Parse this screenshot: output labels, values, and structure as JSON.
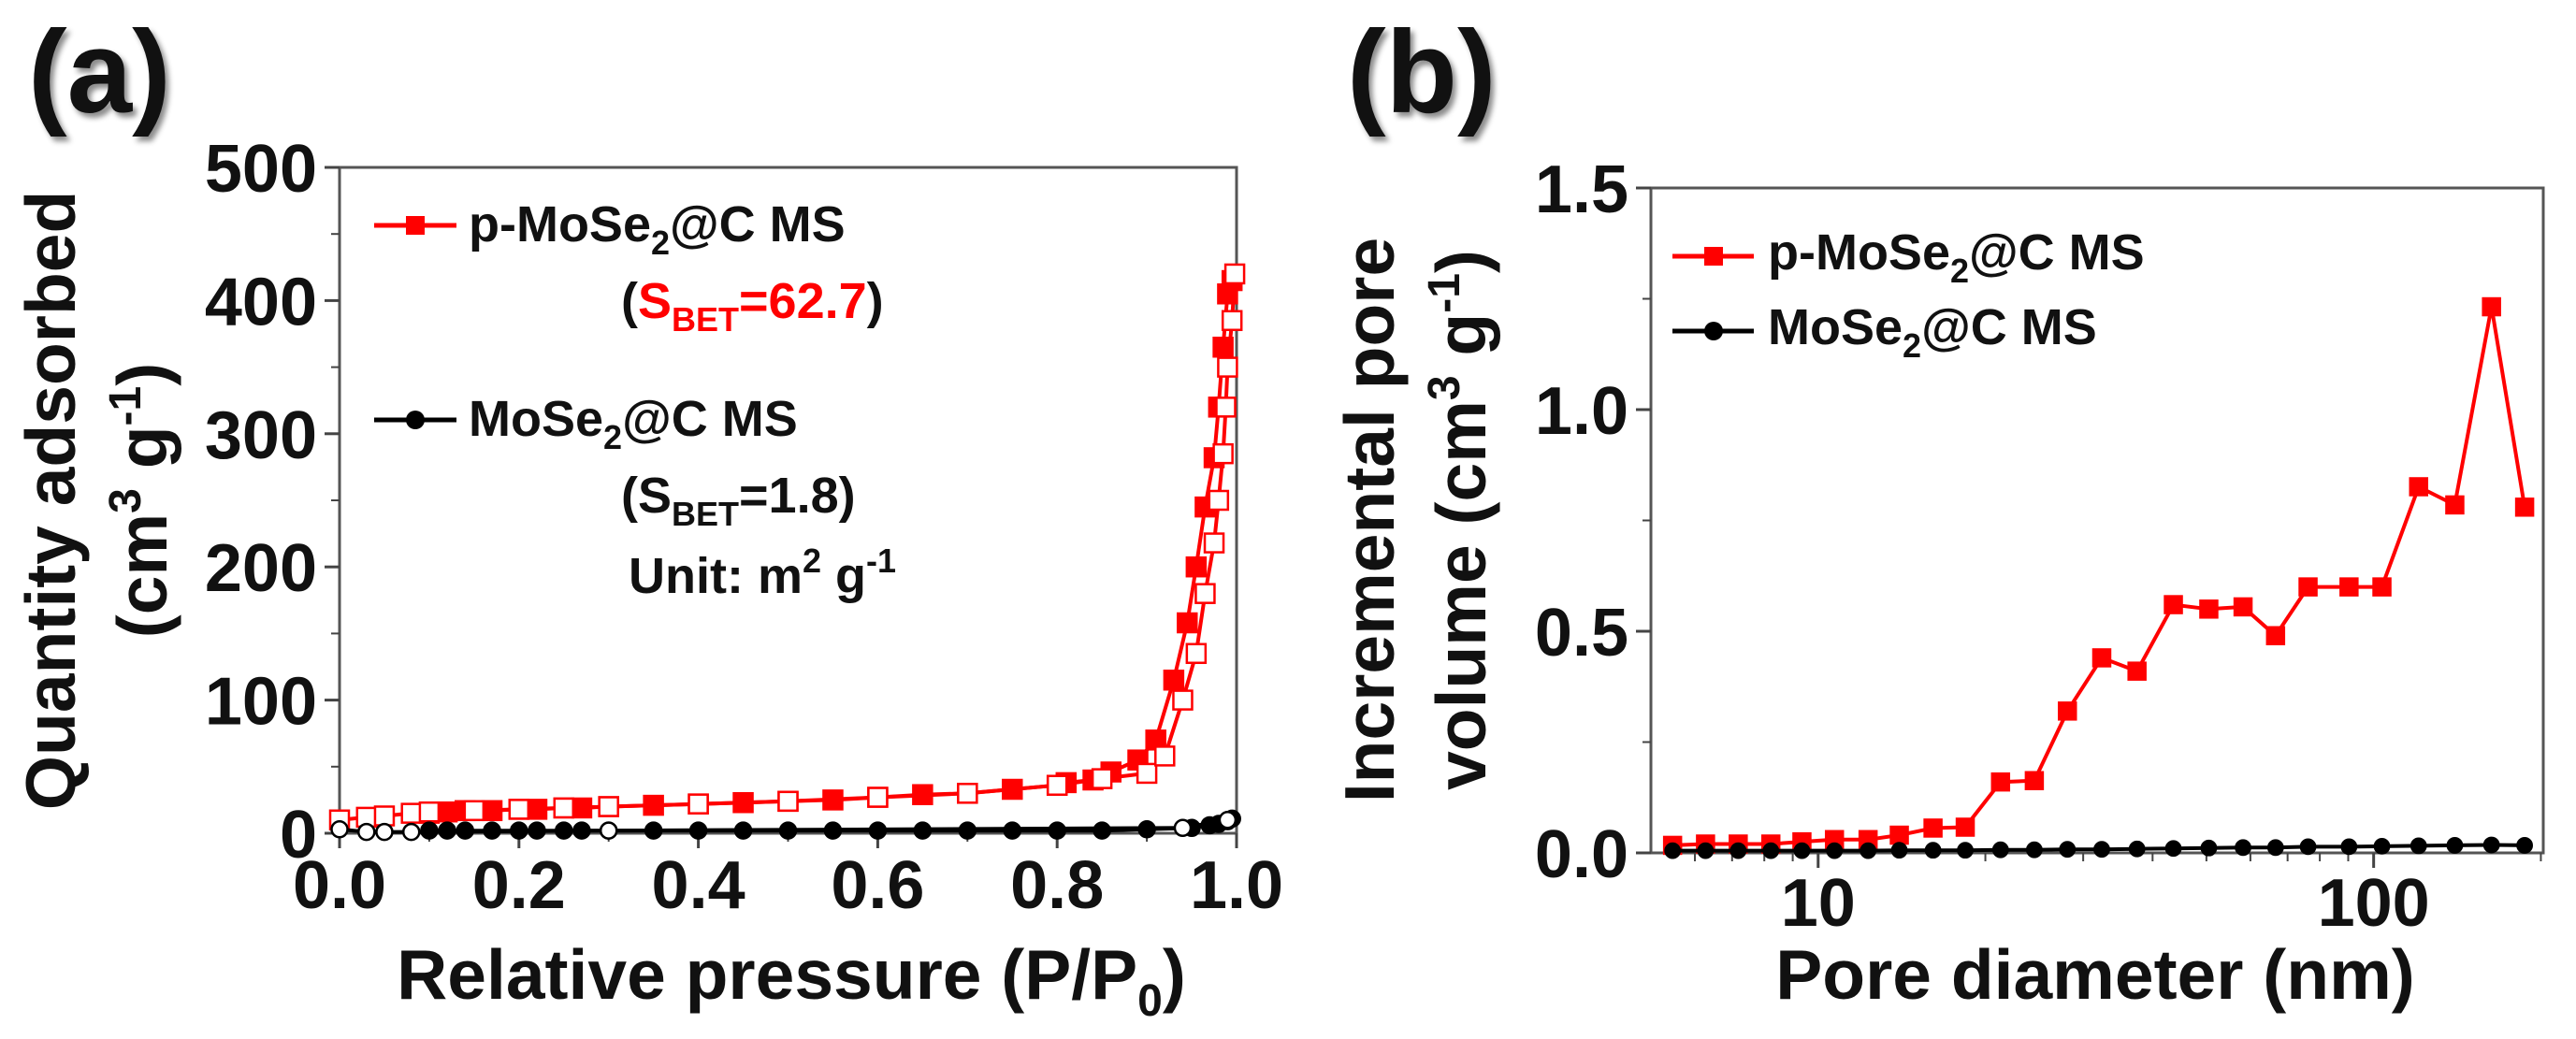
{
  "chart_data": [
    {
      "type": "scatter",
      "panel_label": "(a)",
      "xlabel": {
        "main": "Relative pressure (P/P",
        "sub": "0",
        "end": ")"
      },
      "ylabel": {
        "line1": "Quantity adsorbed",
        "line2_pre": "(cm",
        "line2_sup1": "3",
        "line2_mid": " g",
        "line2_sup2": "-1",
        "line2_end": ")"
      },
      "xlim": [
        0,
        1.0
      ],
      "ylim": [
        0,
        500
      ],
      "xticks": [
        0.0,
        0.2,
        0.4,
        0.6,
        0.8,
        1.0
      ],
      "xtick_labels": [
        "0.0",
        "0.2",
        "0.4",
        "0.6",
        "0.8",
        "1.0"
      ],
      "yticks": [
        0,
        100,
        200,
        300,
        400,
        500
      ],
      "ytick_labels": [
        "0",
        "100",
        "200",
        "300",
        "400",
        "500"
      ],
      "grid": false,
      "legend_position": "top-left",
      "legend": [
        {
          "pre": "p-MoSe",
          "sub": "2",
          "post": "@C MS",
          "color": "#ff0000",
          "marker": "square"
        },
        {
          "pre": "MoSe",
          "sub": "2",
          "post": "@C MS",
          "color": "#000000",
          "marker": "circle"
        }
      ],
      "annotations": {
        "sbet_red": {
          "open": "(",
          "s": "S",
          "sub": "BET",
          "val": "=62.7",
          "close": ")",
          "color": "#ff0000"
        },
        "sbet_black": {
          "open": "(",
          "s": "S",
          "sub": "BET",
          "val": "=1.8",
          "close": ")"
        },
        "unit": {
          "pre": "Unit: m",
          "sup1": "2",
          "mid": " g",
          "sup2": "-1"
        }
      },
      "series": [
        {
          "name": "p-MoSe2@C MS adsorption",
          "color": "#ff0000",
          "marker": "square",
          "filled": true,
          "x": [
            0.1,
            0.12,
            0.14,
            0.17,
            0.2,
            0.22,
            0.25,
            0.27,
            0.3,
            0.35,
            0.4,
            0.45,
            0.5,
            0.55,
            0.6,
            0.65,
            0.7,
            0.75,
            0.8,
            0.81,
            0.84,
            0.86,
            0.89,
            0.91,
            0.93,
            0.945,
            0.955,
            0.965,
            0.975,
            0.98,
            0.985,
            0.99,
            0.995
          ],
          "y": [
            15,
            16,
            17,
            17,
            18,
            18,
            19,
            19,
            20,
            21,
            22,
            23,
            24,
            25,
            27,
            29,
            30,
            33,
            36,
            38,
            40,
            46,
            55,
            70,
            115,
            158,
            200,
            245,
            282,
            320,
            365,
            405,
            415
          ]
        },
        {
          "name": "p-MoSe2@C MS desorption",
          "color": "#ff0000",
          "marker": "square",
          "filled": false,
          "x": [
            0.0,
            0.03,
            0.05,
            0.08,
            0.1,
            0.15,
            0.2,
            0.25,
            0.3,
            0.4,
            0.5,
            0.6,
            0.7,
            0.8,
            0.85,
            0.9,
            0.92,
            0.94,
            0.955,
            0.965,
            0.975,
            0.98,
            0.985,
            0.988,
            0.99,
            0.995,
            0.998
          ],
          "y": [
            10,
            12,
            13,
            15,
            16,
            17,
            18,
            19,
            20,
            22,
            24,
            27,
            30,
            36,
            41,
            45,
            58,
            100,
            135,
            180,
            218,
            250,
            285,
            320,
            350,
            385,
            420
          ]
        },
        {
          "name": "MoSe2@C MS adsorption",
          "color": "#000000",
          "marker": "circle",
          "filled": true,
          "x": [
            0.1,
            0.12,
            0.14,
            0.17,
            0.2,
            0.22,
            0.25,
            0.27,
            0.3,
            0.35,
            0.4,
            0.45,
            0.5,
            0.55,
            0.6,
            0.65,
            0.7,
            0.75,
            0.8,
            0.85,
            0.9,
            0.95,
            0.97,
            0.98,
            0.99,
            0.995
          ],
          "y": [
            2,
            2,
            2,
            2,
            2,
            2,
            2,
            2,
            2,
            2,
            2,
            2,
            2,
            2,
            2,
            2,
            2,
            2,
            2,
            2,
            3,
            4,
            6,
            7,
            9,
            11
          ]
        },
        {
          "name": "MoSe2@C MS desorption",
          "color": "#000000",
          "marker": "circle",
          "filled": false,
          "x": [
            0.0,
            0.03,
            0.05,
            0.08,
            0.3,
            0.94,
            0.99
          ],
          "y": [
            3,
            1,
            1,
            1,
            2,
            4,
            10
          ]
        }
      ]
    },
    {
      "type": "line",
      "panel_label": "(b)",
      "xscale": "log",
      "xlabel": {
        "main": "Pore diameter (nm)"
      },
      "ylabel": {
        "line1": "Incremental pore",
        "line2_pre": "volume (cm",
        "line2_sup1": "3",
        "line2_mid": " g",
        "line2_sup2": "-1",
        "line2_end": ")"
      },
      "xlim": [
        5,
        202
      ],
      "ylim": [
        0,
        1.5
      ],
      "xticks": [
        10,
        100
      ],
      "xtick_labels": [
        "10",
        "100"
      ],
      "yticks": [
        0.0,
        0.5,
        1.0,
        1.5
      ],
      "ytick_labels": [
        "0.0",
        "0.5",
        "1.0",
        "1.5"
      ],
      "grid": false,
      "legend_position": "top-left",
      "legend": [
        {
          "pre": "p-MoSe",
          "sub": "2",
          "post": "@C MS",
          "color": "#ff0000",
          "marker": "square"
        },
        {
          "pre": "MoSe",
          "sub": "2",
          "post": "@C MS",
          "color": "#000000",
          "marker": "circle"
        }
      ],
      "series": [
        {
          "name": "p-MoSe2@C MS",
          "color": "#ff0000",
          "marker": "square",
          "filled": true,
          "x": [
            5.47,
            6.27,
            7.18,
            8.22,
            9.35,
            10.7,
            12.3,
            14.0,
            16.1,
            18.4,
            21.3,
            24.5,
            28.1,
            32.4,
            37.5,
            43.6,
            50.5,
            58.2,
            66.6,
            76.2,
            90.3,
            103.5,
            120.5,
            140,
            163,
            187
          ],
          "y": [
            0.017,
            0.02,
            0.02,
            0.02,
            0.025,
            0.03,
            0.03,
            0.04,
            0.056,
            0.058,
            0.16,
            0.163,
            0.32,
            0.44,
            0.41,
            0.56,
            0.55,
            0.555,
            0.49,
            0.6,
            0.6,
            0.6,
            0.826,
            0.785,
            1.232,
            0.78
          ]
        },
        {
          "name": "MoSe2@C MS",
          "color": "#000000",
          "marker": "circle",
          "filled": true,
          "x": [
            5.47,
            6.27,
            7.18,
            8.22,
            9.35,
            10.7,
            12.3,
            14.0,
            16.1,
            18.4,
            21.3,
            24.5,
            28.1,
            32.4,
            37.5,
            43.6,
            50.5,
            58.2,
            66.6,
            76.2,
            90.3,
            103.5,
            120.5,
            140,
            163,
            187
          ],
          "y": [
            0.005,
            0.005,
            0.005,
            0.005,
            0.005,
            0.005,
            0.005,
            0.006,
            0.006,
            0.006,
            0.007,
            0.007,
            0.008,
            0.008,
            0.009,
            0.01,
            0.011,
            0.012,
            0.012,
            0.014,
            0.014,
            0.015,
            0.016,
            0.017,
            0.018,
            0.017
          ]
        }
      ]
    }
  ]
}
